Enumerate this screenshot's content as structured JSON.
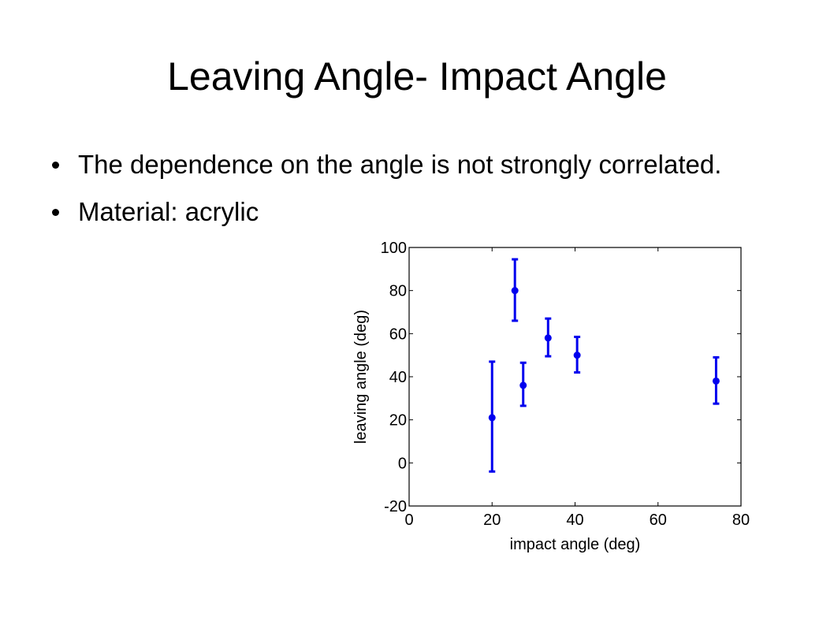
{
  "slide": {
    "title": "Leaving Angle- Impact Angle",
    "bullets": [
      "The dependence on the angle is not strongly correlated.",
      "Material: acrylic"
    ]
  },
  "chart_data": {
    "type": "scatter",
    "xlabel": "impact angle (deg)",
    "ylabel": "leaving angle (deg)",
    "xlim": [
      0,
      80
    ],
    "ylim": [
      -20,
      100
    ],
    "xticks": [
      0,
      20,
      40,
      60,
      80
    ],
    "yticks": [
      -20,
      0,
      20,
      40,
      60,
      80,
      100
    ],
    "grid": false,
    "series_color": "#0000ee",
    "error_bars": true,
    "points": [
      {
        "x": 20,
        "y": 21,
        "low": -4,
        "high": 47
      },
      {
        "x": 25.5,
        "y": 80,
        "low": 66,
        "high": 94.5
      },
      {
        "x": 27.5,
        "y": 36,
        "low": 26.5,
        "high": 46.5
      },
      {
        "x": 33.5,
        "y": 58,
        "low": 49.5,
        "high": 67
      },
      {
        "x": 40.5,
        "y": 50,
        "low": 42,
        "high": 58.5
      },
      {
        "x": 74,
        "y": 38,
        "low": 27.5,
        "high": 49
      }
    ]
  }
}
